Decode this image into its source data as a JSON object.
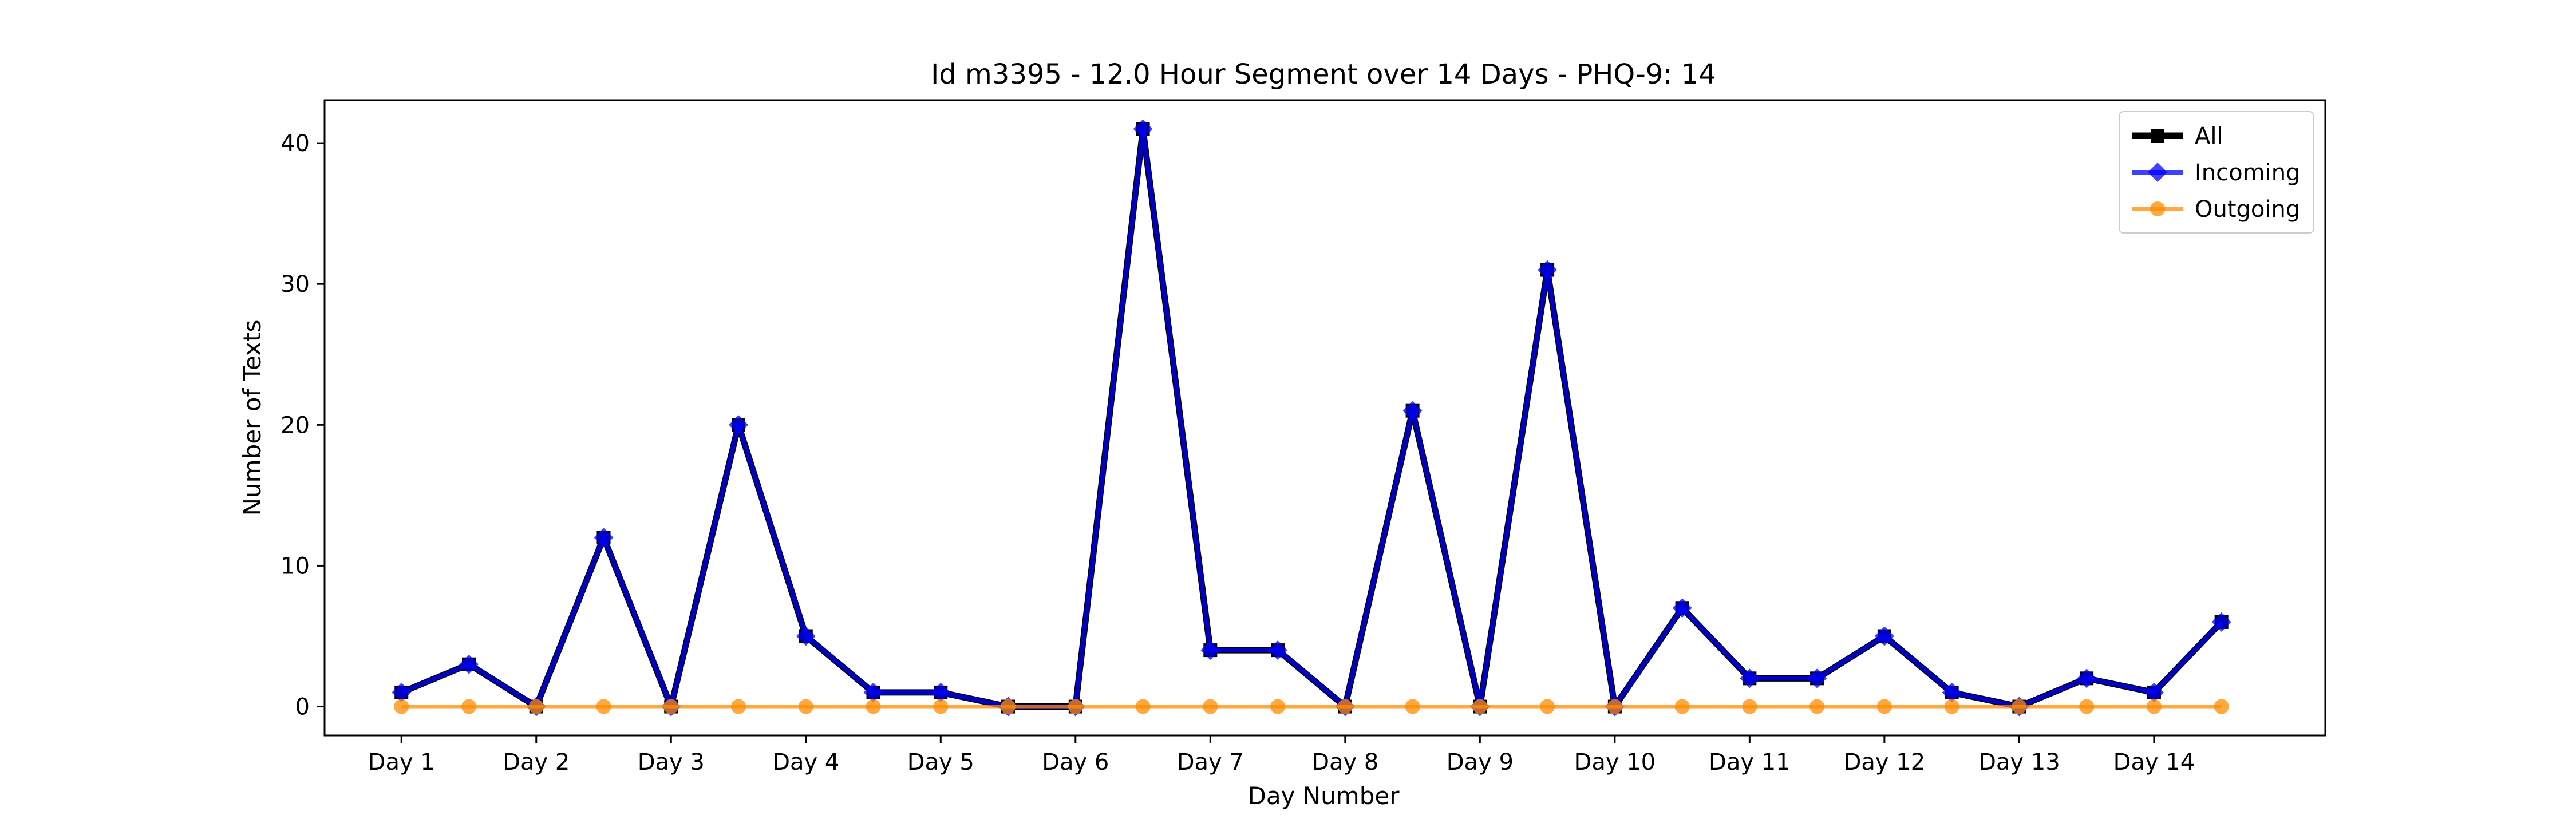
{
  "chart_data": {
    "type": "line",
    "title": "Id m3395 - 12.0 Hour Segment over 14 Days - PHQ-9: 14",
    "xlabel": "Day Number",
    "ylabel": "Number of Texts",
    "x": [
      1,
      1.5,
      2,
      2.5,
      3,
      3.5,
      4,
      4.5,
      5,
      5.5,
      6,
      6.5,
      7,
      7.5,
      8,
      8.5,
      9,
      9.5,
      10,
      10.5,
      11,
      11.5,
      12,
      12.5,
      13,
      13.5,
      14,
      14.5
    ],
    "xlim": [
      0.43,
      15.27
    ],
    "ylim": [
      -2.05,
      43.05
    ],
    "xticks": [
      1,
      2,
      3,
      4,
      5,
      6,
      7,
      8,
      9,
      10,
      11,
      12,
      13,
      14
    ],
    "xtick_labels": [
      "Day 1",
      "Day 2",
      "Day 3",
      "Day 4",
      "Day 5",
      "Day 6",
      "Day 7",
      "Day 8",
      "Day 9",
      "Day 10",
      "Day 11",
      "Day 12",
      "Day 13",
      "Day 14"
    ],
    "yticks": [
      0,
      10,
      20,
      30,
      40
    ],
    "ytick_labels": [
      "0",
      "10",
      "20",
      "30",
      "40"
    ],
    "grid": false,
    "legend_position": "top-right",
    "series": [
      {
        "name": "All",
        "color": "#000000",
        "marker": "square",
        "values": [
          1,
          3,
          0,
          12,
          0,
          20,
          5,
          1,
          1,
          0,
          0,
          41,
          4,
          4,
          0,
          21,
          0,
          31,
          0,
          7,
          2,
          2,
          5,
          1,
          0,
          2,
          1,
          6
        ]
      },
      {
        "name": "Incoming",
        "color": "#0000ff",
        "marker": "diamond",
        "values": [
          1,
          3,
          0,
          12,
          0,
          20,
          5,
          1,
          1,
          0,
          0,
          41,
          4,
          4,
          0,
          21,
          0,
          31,
          0,
          7,
          2,
          2,
          5,
          1,
          0,
          2,
          1,
          6
        ]
      },
      {
        "name": "Outgoing",
        "color": "#ff8c00",
        "marker": "circle",
        "values": [
          0,
          0,
          0,
          0,
          0,
          0,
          0,
          0,
          0,
          0,
          0,
          0,
          0,
          0,
          0,
          0,
          0,
          0,
          0,
          0,
          0,
          0,
          0,
          0,
          0,
          0,
          0,
          0
        ]
      }
    ]
  }
}
